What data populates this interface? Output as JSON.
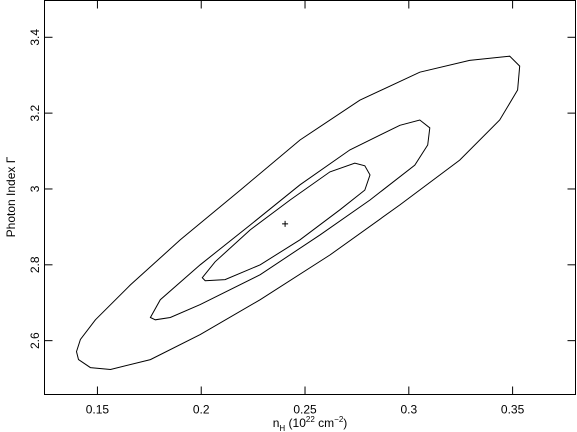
{
  "chart_data": {
    "type": "contour",
    "xlabel": [
      "n",
      "H",
      "  (10",
      "22",
      " cm",
      "−2",
      ")"
    ],
    "ylabel": "Photon Index Γ",
    "xlim": [
      0.1245,
      0.3803
    ],
    "ylim": [
      2.458,
      3.497
    ],
    "xticks": [
      0.15,
      0.2,
      0.25,
      0.3,
      0.35
    ],
    "yticks": [
      2.6,
      2.8,
      3,
      3.2,
      3.4
    ],
    "series": [
      {
        "color": "#000000",
        "x": [
          0.1399,
          0.1418,
          0.149,
          0.1659,
          0.1899,
          0.2188,
          0.2476,
          0.2764,
          0.3053,
          0.3293,
          0.3486,
          0.3534,
          0.3524,
          0.3438,
          0.3245,
          0.2957,
          0.262,
          0.2284,
          0.1995,
          0.1755,
          0.1563,
          0.1466,
          0.1409
        ],
        "y": [
          2.571,
          2.603,
          2.655,
          2.747,
          2.866,
          2.997,
          3.129,
          3.234,
          3.308,
          3.339,
          3.35,
          3.324,
          3.261,
          3.182,
          3.076,
          2.958,
          2.826,
          2.708,
          2.616,
          2.55,
          2.524,
          2.529,
          2.55
        ]
      },
      {
        "color": "#000000",
        "x": [
          0.1755,
          0.1803,
          0.1995,
          0.2236,
          0.2476,
          0.2716,
          0.2957,
          0.3053,
          0.3101,
          0.3091,
          0.3029,
          0.2813,
          0.2572,
          0.2284,
          0.1995,
          0.1851,
          0.1779
        ],
        "y": [
          2.661,
          2.708,
          2.8,
          2.905,
          3.011,
          3.103,
          3.168,
          3.182,
          3.161,
          3.116,
          3.063,
          2.971,
          2.879,
          2.774,
          2.695,
          2.661,
          2.655
        ]
      },
      {
        "color": "#000000",
        "x": [
          0.2005,
          0.2067,
          0.2236,
          0.2428,
          0.262,
          0.274,
          0.2788,
          0.2813,
          0.2788,
          0.2668,
          0.2476,
          0.2284,
          0.2115,
          0.2019
        ],
        "y": [
          2.766,
          2.808,
          2.892,
          2.971,
          3.045,
          3.068,
          3.061,
          3.037,
          2.997,
          2.945,
          2.866,
          2.8,
          2.761,
          2.758
        ]
      }
    ],
    "best_fit": {
      "x": 0.2404,
      "y": 2.908
    }
  }
}
